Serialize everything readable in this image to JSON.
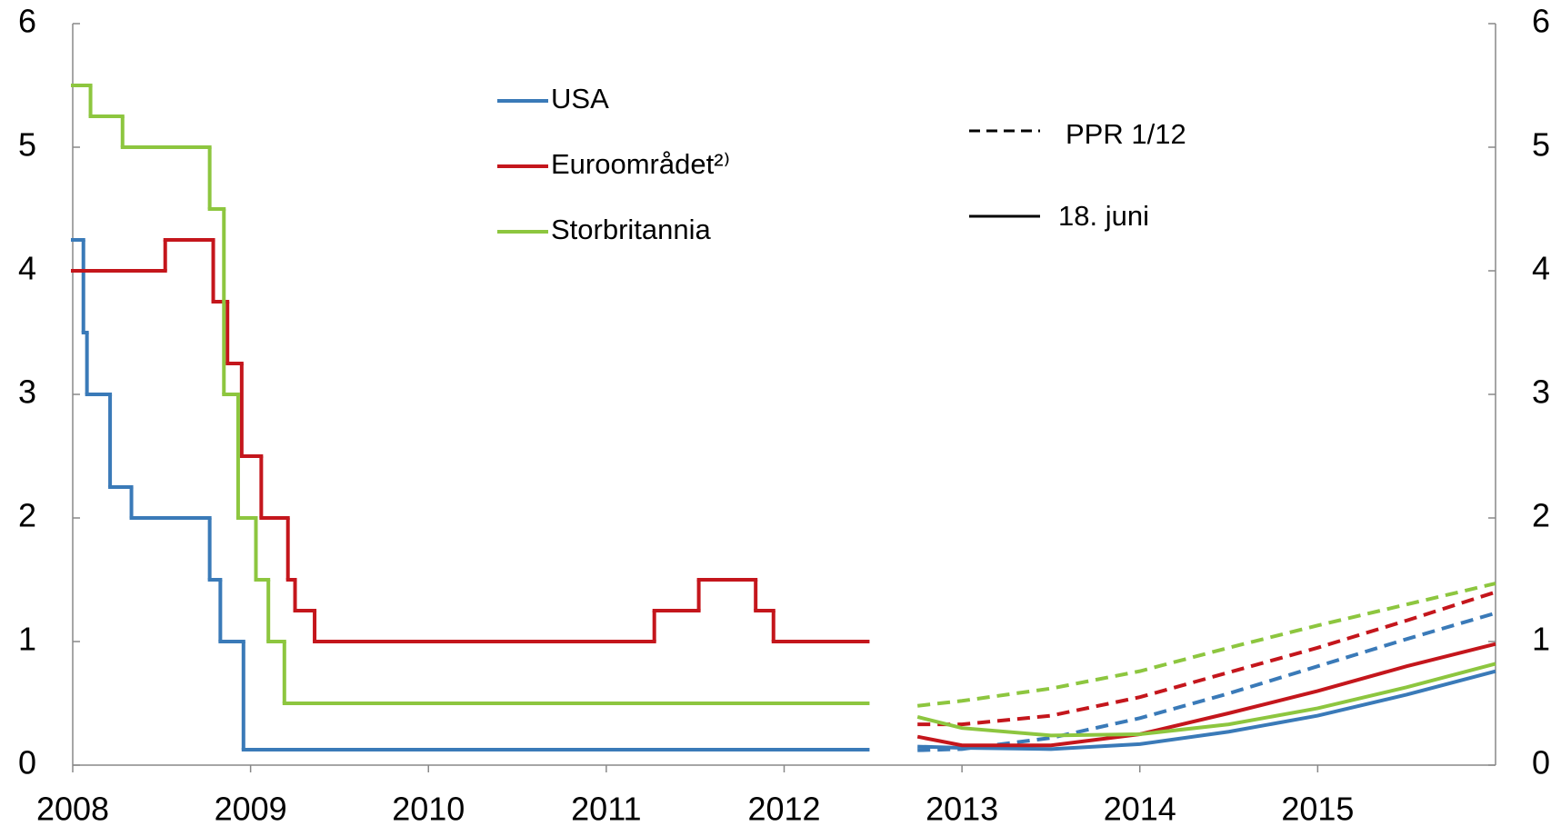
{
  "chart_data": {
    "type": "line",
    "xlim": [
      2008,
      2016
    ],
    "xticks": [
      2008,
      2009,
      2010,
      2011,
      2012,
      2013,
      2014,
      2015
    ],
    "ylim": [
      0,
      6
    ],
    "yticks": [
      0,
      1,
      2,
      3,
      4,
      5,
      6
    ],
    "y2lim": [
      0,
      6
    ],
    "y2ticks": [
      0,
      1,
      2,
      3,
      4,
      5,
      6
    ],
    "line_styles": [
      {
        "label": "PPR 1/12",
        "dash": "dashed"
      },
      {
        "label": "18. juni",
        "dash": "solid"
      }
    ],
    "series": [
      {
        "name": "USA",
        "color": "#3a7ab8",
        "step": true,
        "x": [
          2008,
          2008.06,
          2008.08,
          2008.21,
          2008.33,
          2008.77,
          2008.83,
          2008.96,
          2012.47
        ],
        "values": [
          4.25,
          3.5,
          3,
          2.25,
          2,
          1.5,
          1,
          0.125,
          0.125
        ],
        "projections": [
          {
            "dash": "dashed",
            "x": [
              2012.75,
              2013,
              2013.5,
              2014,
              2014.5,
              2015,
              2015.5,
              2016
            ],
            "values": [
              0.12,
              0.13,
              0.22,
              0.38,
              0.58,
              0.8,
              1.02,
              1.23
            ]
          },
          {
            "dash": "solid",
            "x": [
              2012.75,
              2013,
              2013.5,
              2014,
              2014.5,
              2015,
              2015.5,
              2016
            ],
            "values": [
              0.15,
              0.14,
              0.13,
              0.17,
              0.27,
              0.4,
              0.57,
              0.76
            ]
          }
        ]
      },
      {
        "name": "Euroområdet²⁾",
        "color": "#c4161c",
        "step": true,
        "x": [
          2008,
          2008.52,
          2008.79,
          2008.87,
          2008.95,
          2009.06,
          2009.21,
          2009.25,
          2009.36,
          2011.27,
          2011.52,
          2011.84,
          2011.94,
          2012.47
        ],
        "values": [
          4,
          4.25,
          3.75,
          3.25,
          2.5,
          2,
          1.5,
          1.25,
          1,
          1.25,
          1.5,
          1.25,
          1,
          1
        ],
        "projections": [
          {
            "dash": "dashed",
            "x": [
              2012.75,
              2013,
              2013.5,
              2014,
              2014.5,
              2015,
              2015.5,
              2016
            ],
            "values": [
              0.33,
              0.33,
              0.4,
              0.55,
              0.75,
              0.95,
              1.17,
              1.4
            ]
          },
          {
            "dash": "solid",
            "x": [
              2012.75,
              2013,
              2013.5,
              2014,
              2014.5,
              2015,
              2015.5,
              2016
            ],
            "values": [
              0.23,
              0.16,
              0.16,
              0.25,
              0.42,
              0.6,
              0.8,
              0.98
            ]
          }
        ]
      },
      {
        "name": "Storbritannia",
        "color": "#8dc63f",
        "step": true,
        "x": [
          2008,
          2008.1,
          2008.28,
          2008.77,
          2008.85,
          2008.93,
          2009.03,
          2009.1,
          2009.19,
          2012.47
        ],
        "values": [
          5.5,
          5.25,
          5,
          4.5,
          3,
          2,
          1.5,
          1,
          0.5,
          0.5
        ],
        "projections": [
          {
            "dash": "dashed",
            "x": [
              2012.75,
              2013,
              2013.5,
              2014,
              2014.5,
              2015,
              2015.5,
              2016
            ],
            "values": [
              0.48,
              0.52,
              0.62,
              0.76,
              0.95,
              1.13,
              1.3,
              1.47
            ]
          },
          {
            "dash": "solid",
            "x": [
              2012.75,
              2013,
              2013.5,
              2014,
              2014.5,
              2015,
              2015.5,
              2016
            ],
            "values": [
              0.39,
              0.3,
              0.24,
              0.25,
              0.33,
              0.46,
              0.63,
              0.82
            ]
          }
        ]
      }
    ]
  }
}
